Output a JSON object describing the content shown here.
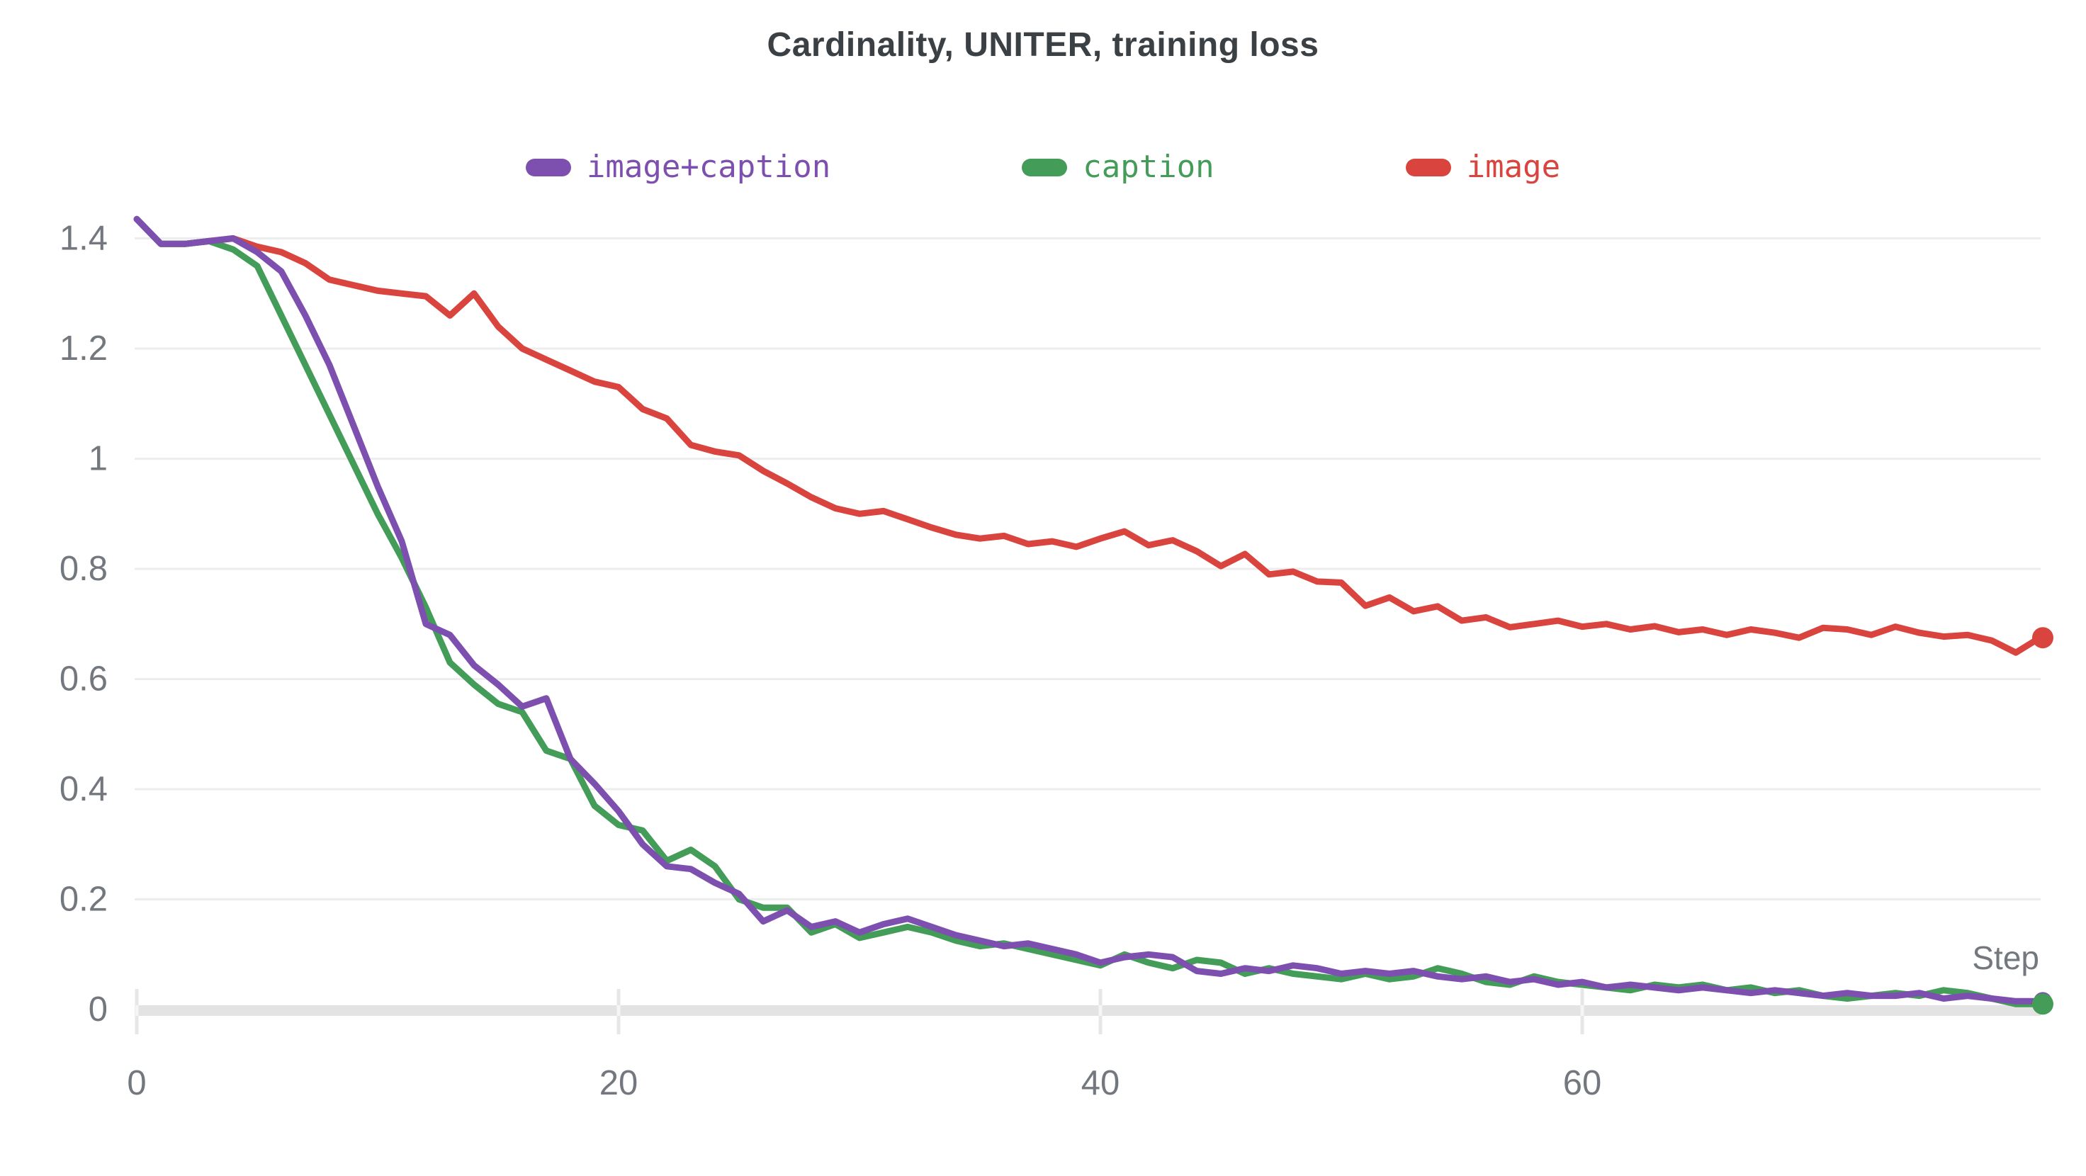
{
  "header": {
    "title": "Cardinality, UNITER, training loss"
  },
  "legend": {
    "items": [
      {
        "label": "image+caption",
        "color": "#7d50af"
      },
      {
        "label": "caption",
        "color": "#449c59"
      },
      {
        "label": "image",
        "color": "#d9453e"
      }
    ]
  },
  "axes": {
    "x_label": "Step",
    "x_tick_labels": [
      "0",
      "20",
      "40",
      "60"
    ],
    "y_tick_labels": [
      "0",
      "0.2",
      "0.4",
      "0.6",
      "0.8",
      "1",
      "1.2",
      "1.4"
    ]
  },
  "colors": {
    "title_text": "#3b4045",
    "axis_text": "#73777e",
    "gridline": "#ededed",
    "axis_band": "#e3e3e3",
    "tick": "#e7e7e7",
    "tick_on_band": "#f5f5f5",
    "background": "#ffffff"
  },
  "chart_data": {
    "type": "line",
    "title": "Cardinality, UNITER, training loss",
    "xlabel": "Step",
    "ylabel": "",
    "xlim": [
      0,
      79.5
    ],
    "ylim": [
      0,
      1.45
    ],
    "xticks": [
      0,
      20,
      40,
      60
    ],
    "yticks": [
      0,
      0.2,
      0.4,
      0.6,
      0.8,
      1,
      1.2,
      1.4
    ],
    "grid": true,
    "legend_position": "top",
    "x": [
      0,
      1,
      2,
      3,
      4,
      5,
      6,
      7,
      8,
      9,
      10,
      11,
      12,
      13,
      14,
      15,
      16,
      17,
      18,
      19,
      20,
      21,
      22,
      23,
      24,
      25,
      26,
      27,
      28,
      29,
      30,
      31,
      32,
      33,
      34,
      35,
      36,
      37,
      38,
      39,
      40,
      41,
      42,
      43,
      44,
      45,
      46,
      47,
      48,
      49,
      50,
      51,
      52,
      53,
      54,
      55,
      56,
      57,
      58,
      59,
      60,
      61,
      62,
      63,
      64,
      65,
      66,
      67,
      68,
      69,
      70,
      71,
      72,
      73,
      74,
      75,
      76,
      77,
      78,
      79
    ],
    "series": [
      {
        "name": "image+caption",
        "color": "#7d50af",
        "end_marker": true,
        "values": [
          1.435,
          1.39,
          1.39,
          1.395,
          1.4,
          1.375,
          1.34,
          1.26,
          1.17,
          1.06,
          0.95,
          0.85,
          0.7,
          0.68,
          0.625,
          0.59,
          0.55,
          0.565,
          0.455,
          0.41,
          0.36,
          0.3,
          0.26,
          0.255,
          0.23,
          0.21,
          0.16,
          0.18,
          0.15,
          0.16,
          0.14,
          0.155,
          0.165,
          0.15,
          0.135,
          0.125,
          0.115,
          0.12,
          0.11,
          0.1,
          0.085,
          0.095,
          0.1,
          0.095,
          0.07,
          0.065,
          0.075,
          0.07,
          0.08,
          0.075,
          0.065,
          0.07,
          0.065,
          0.07,
          0.06,
          0.055,
          0.06,
          0.05,
          0.055,
          0.045,
          0.05,
          0.04,
          0.045,
          0.04,
          0.035,
          0.04,
          0.035,
          0.03,
          0.035,
          0.03,
          0.025,
          0.03,
          0.025,
          0.025,
          0.03,
          0.02,
          0.025,
          0.02,
          0.015,
          0.015
        ]
      },
      {
        "name": "caption",
        "color": "#449c59",
        "end_marker": true,
        "values": [
          1.435,
          1.39,
          1.39,
          1.395,
          1.38,
          1.35,
          1.26,
          1.17,
          1.08,
          0.99,
          0.9,
          0.82,
          0.73,
          0.63,
          0.59,
          0.555,
          0.54,
          0.47,
          0.455,
          0.37,
          0.335,
          0.325,
          0.27,
          0.29,
          0.26,
          0.2,
          0.185,
          0.185,
          0.14,
          0.155,
          0.13,
          0.14,
          0.15,
          0.14,
          0.125,
          0.115,
          0.12,
          0.11,
          0.1,
          0.09,
          0.08,
          0.1,
          0.085,
          0.075,
          0.09,
          0.085,
          0.065,
          0.075,
          0.065,
          0.06,
          0.055,
          0.065,
          0.055,
          0.06,
          0.075,
          0.065,
          0.05,
          0.045,
          0.06,
          0.05,
          0.045,
          0.04,
          0.035,
          0.045,
          0.04,
          0.045,
          0.035,
          0.04,
          0.03,
          0.035,
          0.025,
          0.02,
          0.025,
          0.03,
          0.025,
          0.035,
          0.03,
          0.02,
          0.01,
          0.01
        ]
      },
      {
        "name": "image",
        "color": "#d9453e",
        "end_marker": true,
        "values": [
          1.435,
          1.39,
          1.39,
          1.395,
          1.4,
          1.385,
          1.375,
          1.355,
          1.325,
          1.315,
          1.305,
          1.3,
          1.295,
          1.26,
          1.3,
          1.24,
          1.2,
          1.18,
          1.16,
          1.14,
          1.13,
          1.09,
          1.073,
          1.025,
          1.013,
          1.006,
          0.978,
          0.955,
          0.93,
          0.91,
          0.9,
          0.905,
          0.89,
          0.875,
          0.862,
          0.855,
          0.86,
          0.845,
          0.85,
          0.84,
          0.855,
          0.868,
          0.843,
          0.852,
          0.832,
          0.805,
          0.827,
          0.79,
          0.795,
          0.777,
          0.775,
          0.733,
          0.748,
          0.723,
          0.732,
          0.706,
          0.712,
          0.694,
          0.7,
          0.706,
          0.695,
          0.7,
          0.69,
          0.696,
          0.685,
          0.69,
          0.68,
          0.69,
          0.684,
          0.675,
          0.693,
          0.69,
          0.68,
          0.695,
          0.684,
          0.677,
          0.68,
          0.67,
          0.648,
          0.675
        ]
      }
    ]
  }
}
